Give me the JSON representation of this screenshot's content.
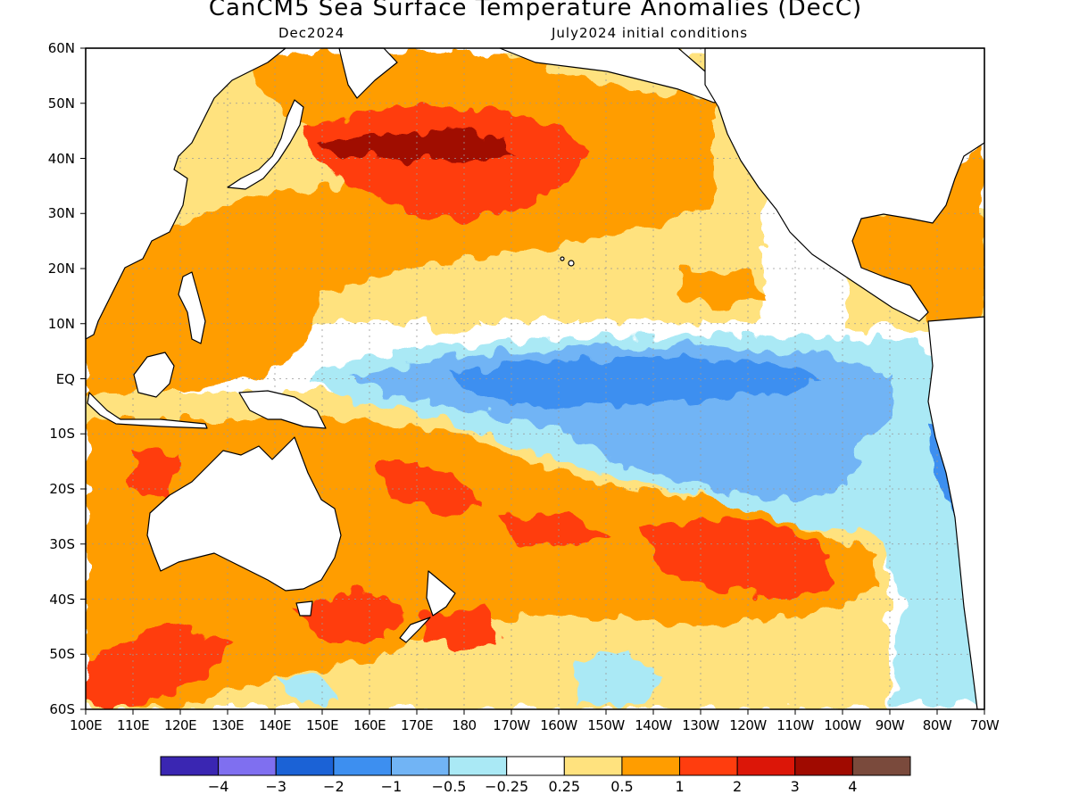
{
  "title": "CanCM5 Sea Surface Temperature Anomalies (DecC)",
  "subtitle_left": "Dec2024",
  "subtitle_right": "July2024 initial conditions",
  "lat_labels": [
    "60N",
    "50N",
    "40N",
    "30N",
    "20N",
    "10N",
    "EQ",
    "10S",
    "20S",
    "30S",
    "40S",
    "50S",
    "60S"
  ],
  "lon_labels": [
    "100E",
    "110E",
    "120E",
    "130E",
    "140E",
    "150E",
    "160E",
    "170E",
    "180",
    "170W",
    "160W",
    "150W",
    "140W",
    "130W",
    "120W",
    "110W",
    "100W",
    "90W",
    "80W",
    "70W"
  ],
  "legend": {
    "colors": [
      "#3a26b2",
      "#7f6ff0",
      "#1b62d6",
      "#3d8ff0",
      "#71b4f5",
      "#aae9f5",
      "#ffffff",
      "#ffe27e",
      "#ff9d00",
      "#ff3d0e",
      "#dc1608",
      "#a00a00",
      "#7a4a3c"
    ],
    "labels": [
      "−4",
      "−3",
      "−2",
      "−1",
      "−0.5",
      "−0.25",
      "0.25",
      "0.5",
      "1",
      "2",
      "3",
      "4"
    ]
  },
  "anomaly_colors": {
    "strong_negative": "#3d8ff0",
    "moderate_negative": "#71b4f5",
    "weak_negative": "#aae9f5",
    "weak_positive": "#ffe27e",
    "moderate_positive": "#ff9d00",
    "strong_positive": "#ff3d0e",
    "very_strong_positive": "#a00a00"
  },
  "features": {
    "equatorial_cold_tongue": "negative anomalies across central and eastern equatorial Pacific",
    "north_pacific_warm": "strong positive anomalies near 40N",
    "south_pacific_warm": "broad positive anomalies 15S-45S"
  }
}
